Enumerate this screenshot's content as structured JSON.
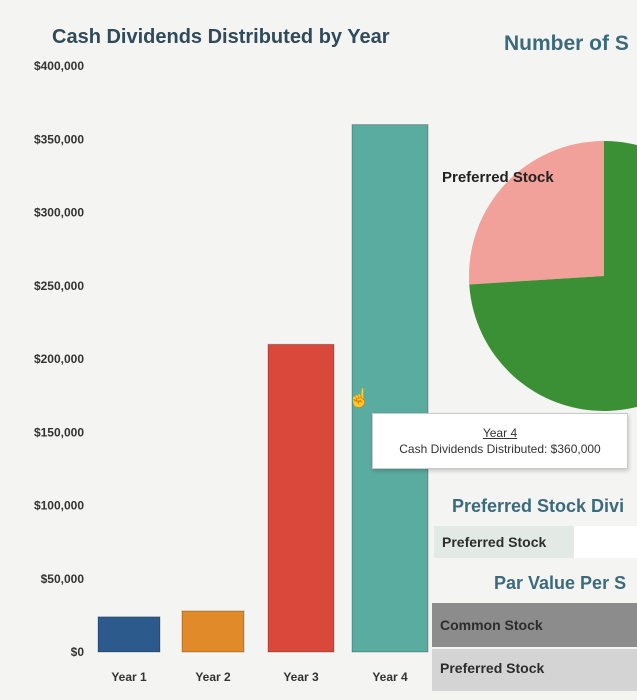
{
  "chart_data": [
    {
      "type": "bar",
      "title": "Cash Dividends Distributed by Year",
      "categories": [
        "Year 1",
        "Year 2",
        "Year 3",
        "Year 4"
      ],
      "values": [
        24000,
        28000,
        210000,
        360000
      ],
      "colors": [
        "#2d5a8c",
        "#e08a2a",
        "#d9483b",
        "#5aaba0"
      ],
      "yticks": [
        "$0",
        "$50,000",
        "$100,000",
        "$150,000",
        "$200,000",
        "$250,000",
        "$300,000",
        "$350,000",
        "$400,000"
      ],
      "ylim": [
        0,
        400000
      ],
      "xlabel": "",
      "ylabel": "",
      "grid": false
    },
    {
      "type": "pie",
      "title": "Number of S",
      "slices": [
        {
          "label": "Preferred Stock",
          "value": 26,
          "color": "#f2a09a"
        },
        {
          "label": "",
          "value": 74,
          "color": "#3b8f34"
        }
      ]
    }
  ],
  "tooltip": {
    "year": "Year 4",
    "line": "Cash Dividends Distributed: $360,000"
  },
  "panels": {
    "preferred_div_title": "Preferred Stock Divi",
    "preferred_stock_box": "Preferred Stock",
    "par_value_title": "Par Value Per S",
    "common_stock_box": "Common Stock",
    "preferred_stock_box_2": "Preferred Stock"
  }
}
